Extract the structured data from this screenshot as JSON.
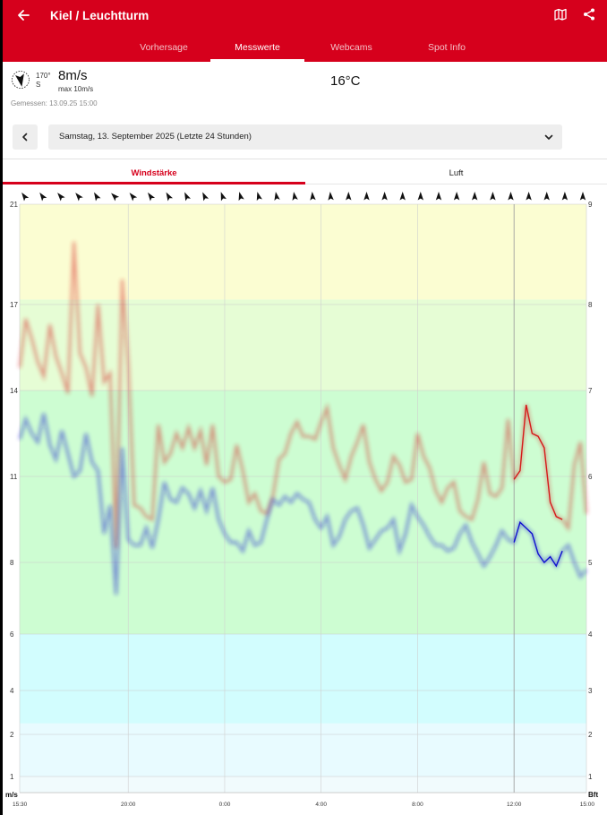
{
  "header": {
    "title": "Kiel / Leuchtturm",
    "tabs": [
      {
        "label": "Vorhersage",
        "active": false
      },
      {
        "label": "Messwerte",
        "active": true
      },
      {
        "label": "Webcams",
        "active": false
      },
      {
        "label": "Spot Info",
        "active": false
      }
    ],
    "icons": [
      "back-arrow-icon",
      "map-icon",
      "share-icon"
    ],
    "color": "#d6001c"
  },
  "current": {
    "direction_deg": "170°",
    "direction_label": "S",
    "speed": "8m/s",
    "max": "max 10m/s",
    "temperature": "16°C",
    "measured": "Gemessen: 13.09.25 15:00"
  },
  "date_selector": {
    "selected": "Samstag, 13. September 2025 (Letzte 24 Stunden)"
  },
  "sub_tabs": [
    {
      "label": "Windstärke",
      "active": true
    },
    {
      "label": "Luft",
      "active": false
    }
  ],
  "chart_data": {
    "type": "line",
    "xlabel": "",
    "ylabel_left": "m/s",
    "ylabel_right": "Bft",
    "x_ticks": [
      "15:30",
      "20:00",
      "0:00",
      "4:00",
      "8:00",
      "12:00",
      "15:00"
    ],
    "x_tick_hours": [
      0,
      4.5,
      8.5,
      12.5,
      16.5,
      20.5,
      23.5
    ],
    "xlim": [
      0,
      23.5
    ],
    "y_ticks_left": [
      "1",
      "2",
      "4",
      "6",
      "8",
      "11",
      "14",
      "17",
      "21"
    ],
    "y_ticks_right": [
      "1",
      "2",
      "3",
      "4",
      "5",
      "6",
      "7",
      "8",
      "9"
    ],
    "beaufort_upper_ms": [
      1.5,
      3.3,
      5.5,
      7.9,
      10.7,
      13.8,
      17.1,
      20.7
    ],
    "ylim": [
      0,
      21
    ],
    "highlight_hour": 20.5,
    "series": [
      {
        "color": "#d61a1a",
        "role": "gust",
        "x": [
          0,
          0.25,
          0.5,
          0.75,
          1,
          1.25,
          1.5,
          1.75,
          2,
          2.25,
          2.5,
          2.75,
          3,
          3.25,
          3.5,
          3.75,
          4,
          4.25,
          4.5,
          4.75,
          5,
          5.25,
          5.5,
          5.75,
          6,
          6.25,
          6.5,
          6.75,
          7,
          7.25,
          7.5,
          7.75,
          8,
          8.25,
          8.5,
          8.75,
          9,
          9.25,
          9.5,
          9.75,
          10,
          10.25,
          10.5,
          10.75,
          11,
          11.25,
          11.5,
          11.75,
          12,
          12.25,
          12.5,
          12.75,
          13,
          13.25,
          13.5,
          13.75,
          14,
          14.25,
          14.5,
          14.75,
          15,
          15.25,
          15.5,
          15.75,
          16,
          16.25,
          16.5,
          16.75,
          17,
          17.25,
          17.5,
          17.75,
          18,
          18.25,
          18.5,
          18.75,
          19,
          19.25,
          19.5,
          19.75,
          20,
          20.25,
          20.5,
          20.75,
          21,
          21.25,
          21.5,
          21.75,
          22,
          22.25,
          22.5,
          22.75,
          23,
          23.25,
          23.5
        ],
        "y": [
          14.8,
          16.5,
          15.8,
          15.0,
          14.5,
          16.3,
          15.2,
          14.6,
          13.9,
          19.5,
          15.3,
          14.8,
          13.8,
          17.0,
          14.3,
          14.6,
          8.5,
          18.0,
          14.9,
          10.0,
          9.9,
          9.6,
          9.5,
          12.8,
          11.5,
          11.8,
          12.5,
          12.0,
          12.7,
          12.0,
          12.6,
          11.4,
          12.8,
          11.0,
          10.8,
          10.9,
          12.1,
          11.2,
          10.1,
          10.4,
          9.8,
          9.7,
          10.3,
          11.6,
          11.8,
          12.5,
          12.9,
          12.4,
          12.4,
          12.3,
          12.9,
          13.4,
          12.0,
          11.4,
          10.9,
          11.7,
          12.2,
          12.8,
          11.5,
          10.9,
          10.5,
          10.8,
          11.7,
          11.4,
          10.8,
          10.9,
          12.5,
          11.7,
          11.3,
          10.5,
          10.1,
          10.6,
          10.8,
          9.8,
          9.6,
          9.5,
          10.2,
          11.5,
          10.4,
          10.3,
          10.6,
          13.0,
          10.9,
          11.2,
          13.5,
          12.5,
          12.4,
          12.0,
          10.1,
          9.6,
          9.5,
          9.2,
          11.4,
          12.2,
          9.7
        ]
      },
      {
        "color": "#1010d0",
        "role": "average",
        "x": [
          0,
          0.25,
          0.5,
          0.75,
          1,
          1.25,
          1.5,
          1.75,
          2,
          2.25,
          2.5,
          2.75,
          3,
          3.25,
          3.5,
          3.75,
          4,
          4.25,
          4.5,
          4.75,
          5,
          5.25,
          5.5,
          5.75,
          6,
          6.25,
          6.5,
          6.75,
          7,
          7.25,
          7.5,
          7.75,
          8,
          8.25,
          8.5,
          8.75,
          9,
          9.25,
          9.5,
          9.75,
          10,
          10.25,
          10.5,
          10.75,
          11,
          11.25,
          11.5,
          11.75,
          12,
          12.25,
          12.5,
          12.75,
          13,
          13.25,
          13.5,
          13.75,
          14,
          14.25,
          14.5,
          14.75,
          15,
          15.25,
          15.5,
          15.75,
          16,
          16.25,
          16.5,
          16.75,
          17,
          17.25,
          17.5,
          17.75,
          18,
          18.25,
          18.5,
          18.75,
          19,
          19.25,
          19.5,
          19.75,
          20,
          20.25,
          20.5,
          20.75,
          21,
          21.25,
          21.5,
          21.75,
          22,
          22.25,
          22.5,
          22.75,
          23,
          23.25,
          23.5
        ],
        "y": [
          12.3,
          13.0,
          12.5,
          12.2,
          13.2,
          12.1,
          11.6,
          12.6,
          11.8,
          11.0,
          11.2,
          12.5,
          11.5,
          11.2,
          9.0,
          10.0,
          7.1,
          12.0,
          8.8,
          8.6,
          8.6,
          9.2,
          8.5,
          9.5,
          10.8,
          10.2,
          10.1,
          10.6,
          10.4,
          9.9,
          10.5,
          9.8,
          10.6,
          9.5,
          9.0,
          8.7,
          8.7,
          8.4,
          9.1,
          8.6,
          8.7,
          9.5,
          10.2,
          10.0,
          10.3,
          10.1,
          10.4,
          10.2,
          10.1,
          9.5,
          9.2,
          9.6,
          8.6,
          8.9,
          9.5,
          9.8,
          9.9,
          9.3,
          8.5,
          8.8,
          9.1,
          9.2,
          9.5,
          8.4,
          9.0,
          10.0,
          9.6,
          9.3,
          8.9,
          8.6,
          8.6,
          8.4,
          8.5,
          9.0,
          9.3,
          8.7,
          8.3,
          7.9,
          8.2,
          8.6,
          9.1,
          8.8,
          8.7,
          9.4,
          9.2,
          9.0,
          8.3,
          8.0,
          8.2,
          7.9,
          8.4,
          8.6,
          8.0,
          7.6,
          7.8
        ]
      }
    ]
  }
}
